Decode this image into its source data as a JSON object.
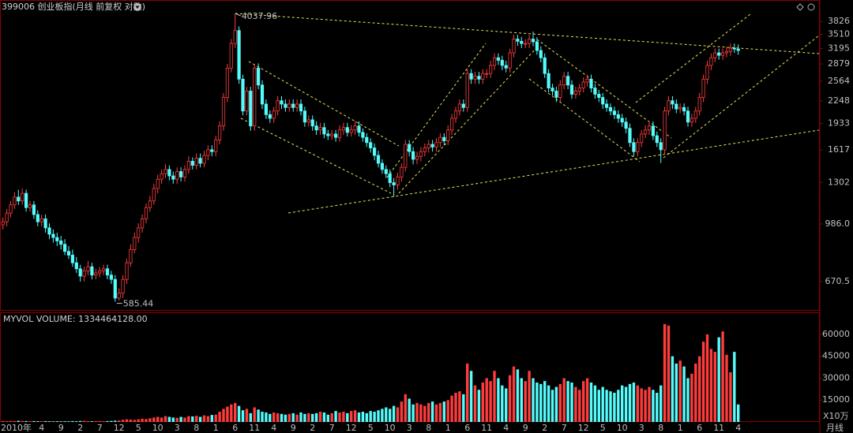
{
  "chart_data": {
    "type": "candlestick",
    "title": "399006 创业板指(月线 前复权 对数)",
    "categories": [
      "2010年",
      null,
      null,
      null,
      null,
      null,
      null,
      null,
      null,
      null,
      "4",
      null,
      null,
      null,
      null,
      "9",
      null,
      null,
      null,
      null,
      "2",
      null,
      null,
      null,
      null,
      "7",
      null,
      null,
      null,
      null,
      "12",
      null,
      null,
      null,
      null,
      "5",
      null,
      null,
      null,
      null,
      "10",
      null,
      null,
      null,
      null,
      "3",
      null,
      null,
      null,
      null,
      "8",
      null,
      null,
      null,
      null,
      "1",
      null,
      null,
      null,
      null,
      "6",
      null,
      null,
      null,
      null,
      "11",
      null,
      null,
      null,
      null,
      "4",
      null,
      null,
      null,
      null,
      "9",
      null,
      null,
      null,
      null,
      "2",
      null,
      null,
      null,
      null,
      "7",
      null,
      null,
      null,
      null,
      "12",
      null,
      null,
      null,
      null,
      "5",
      null,
      null,
      null,
      null,
      "10",
      null,
      null,
      null,
      null,
      "3",
      null,
      null,
      null,
      null,
      "8",
      null,
      null,
      null,
      null,
      "1",
      null,
      null,
      null,
      null,
      "6",
      null,
      null,
      null,
      null,
      "11",
      null,
      null,
      null,
      null,
      "4",
      null,
      null,
      null,
      null,
      "9",
      null,
      null,
      null,
      null,
      "2",
      null,
      null,
      null,
      null,
      "7",
      null,
      null,
      null,
      null,
      "12",
      null,
      null,
      null,
      null,
      "5",
      null,
      null,
      null,
      null,
      "10",
      null,
      null,
      null,
      null,
      "3",
      null,
      null,
      null,
      null,
      "8",
      null,
      null,
      null,
      null,
      "1",
      null,
      null,
      null,
      null,
      "6",
      null,
      null,
      null,
      null,
      "11",
      null,
      null,
      null,
      null,
      "4"
    ],
    "open": [
      980,
      1000,
      1060,
      1120,
      1180,
      1150,
      1210,
      1100,
      1120,
      1050,
      1000,
      1020,
      960,
      920,
      900,
      880,
      860,
      820,
      800,
      760,
      730,
      695,
      720,
      740,
      700,
      710,
      720,
      730,
      700,
      680,
      600,
      620,
      680,
      760,
      830,
      900,
      960,
      1020,
      1100,
      1150,
      1250,
      1330,
      1380,
      1420,
      1360,
      1330,
      1400,
      1350,
      1420,
      1500,
      1460,
      1530,
      1480,
      1560,
      1620,
      1600,
      1730,
      1900,
      2300,
      2800,
      3300,
      3600,
      2600,
      2100,
      2400,
      1900,
      2800,
      2500,
      2200,
      2050,
      2000,
      2100,
      2250,
      2200,
      2150,
      2200,
      2150,
      2200,
      2100,
      1950,
      1980,
      1900,
      1850,
      1880,
      1800,
      1780,
      1800,
      1760,
      1850,
      1880,
      1820,
      1850,
      1900,
      1820,
      1760,
      1700,
      1640,
      1560,
      1480,
      1420,
      1380,
      1300,
      1280,
      1350,
      1440,
      1680,
      1600,
      1520,
      1550,
      1600,
      1640,
      1680,
      1650,
      1700,
      1760,
      1720,
      1850,
      2000,
      2100,
      2200,
      2150,
      2700,
      2600,
      2650,
      2600,
      2700,
      2700,
      2850,
      3000,
      2950,
      2850,
      2800,
      3100,
      3400,
      3350,
      3300,
      3300,
      3400,
      3340,
      3150,
      3000,
      2700,
      2450,
      2400,
      2300,
      2500,
      2650,
      2500,
      2350,
      2400,
      2450,
      2550,
      2600,
      2450,
      2350,
      2300,
      2200,
      2150,
      2100,
      2050,
      2000,
      1950,
      1870,
      1700,
      1600,
      1700,
      1800,
      1850,
      1900,
      1780,
      1700,
      1620,
      2100,
      2250,
      2200,
      2130,
      2150,
      2100,
      1950,
      2000,
      2100,
      2300,
      2600,
      2850,
      3000,
      3100,
      3050,
      3100,
      3130,
      3200,
      3180
    ],
    "high": [
      1030,
      1090,
      1150,
      1220,
      1240,
      1250,
      1240,
      1150,
      1150,
      1080,
      1050,
      1050,
      990,
      950,
      930,
      910,
      890,
      850,
      830,
      790,
      750,
      740,
      770,
      760,
      730,
      740,
      750,
      750,
      720,
      700,
      640,
      700,
      780,
      860,
      930,
      990,
      1050,
      1130,
      1190,
      1290,
      1370,
      1420,
      1470,
      1460,
      1400,
      1440,
      1440,
      1460,
      1550,
      1540,
      1580,
      1580,
      1610,
      1670,
      1670,
      1780,
      1960,
      2370,
      2880,
      3400,
      4037.96,
      3700,
      2680,
      2470,
      2470,
      2880,
      2890,
      2580,
      2270,
      2110,
      2160,
      2320,
      2320,
      2270,
      2270,
      2270,
      2270,
      2270,
      2160,
      2040,
      2040,
      1960,
      1940,
      1940,
      1850,
      1850,
      1850,
      1910,
      1940,
      1940,
      1910,
      1960,
      1960,
      1870,
      1810,
      1750,
      1690,
      1610,
      1520,
      1460,
      1420,
      1340,
      1390,
      1480,
      1730,
      1730,
      1650,
      1600,
      1650,
      1690,
      1730,
      1730,
      1750,
      1810,
      1810,
      1910,
      2060,
      2160,
      2270,
      2270,
      2780,
      2780,
      2730,
      2730,
      2780,
      2780,
      2940,
      3090,
      3090,
      3040,
      2940,
      3190,
      3500,
      3500,
      3450,
      3400,
      3500,
      3576,
      3440,
      3240,
      3090,
      2780,
      2520,
      2470,
      2580,
      2730,
      2730,
      2580,
      2470,
      2520,
      2630,
      2680,
      2680,
      2520,
      2420,
      2370,
      2270,
      2210,
      2160,
      2110,
      2060,
      2010,
      1930,
      1750,
      1750,
      1850,
      1910,
      1960,
      1960,
      1830,
      1750,
      2160,
      2320,
      2320,
      2270,
      2210,
      2210,
      2160,
      2060,
      2160,
      2370,
      2680,
      2940,
      3090,
      3190,
      3190,
      3190,
      3220,
      3300,
      3300,
      3280
    ],
    "low": [
      950,
      970,
      1030,
      1090,
      1120,
      1120,
      1070,
      1070,
      1020,
      970,
      970,
      930,
      890,
      870,
      850,
      830,
      800,
      780,
      740,
      710,
      670,
      670,
      700,
      680,
      680,
      690,
      700,
      680,
      660,
      585.44,
      590,
      600,
      660,
      740,
      810,
      870,
      930,
      990,
      1070,
      1120,
      1210,
      1290,
      1340,
      1320,
      1290,
      1290,
      1310,
      1310,
      1380,
      1420,
      1420,
      1440,
      1440,
      1510,
      1550,
      1550,
      1680,
      1840,
      2230,
      2720,
      3200,
      2520,
      2040,
      2040,
      1840,
      1840,
      2430,
      2130,
      1990,
      1940,
      1940,
      2040,
      2130,
      2090,
      2090,
      2090,
      2090,
      2040,
      1890,
      1890,
      1840,
      1790,
      1790,
      1750,
      1730,
      1730,
      1710,
      1710,
      1790,
      1770,
      1770,
      1790,
      1770,
      1710,
      1650,
      1590,
      1510,
      1440,
      1380,
      1340,
      1260,
      1184,
      1240,
      1310,
      1400,
      1550,
      1470,
      1470,
      1500,
      1550,
      1590,
      1600,
      1600,
      1650,
      1670,
      1670,
      1790,
      1940,
      2040,
      2090,
      2090,
      2520,
      2520,
      2520,
      2520,
      2620,
      2620,
      2760,
      2860,
      2760,
      2720,
      2720,
      3010,
      3250,
      3200,
      3200,
      3200,
      3240,
      3060,
      2910,
      2620,
      2380,
      2330,
      2230,
      2230,
      2430,
      2430,
      2280,
      2280,
      2330,
      2380,
      2470,
      2380,
      2280,
      2230,
      2130,
      2090,
      2040,
      1990,
      1940,
      1890,
      1810,
      1650,
      1550,
      1550,
      1650,
      1750,
      1790,
      1730,
      1650,
      1482,
      1570,
      2040,
      2130,
      2070,
      2070,
      2040,
      1890,
      1890,
      1940,
      2040,
      2230,
      2520,
      2760,
      2910,
      2960,
      2960,
      3010,
      3040,
      3100,
      3060
    ],
    "close": [
      1000,
      1060,
      1120,
      1180,
      1150,
      1210,
      1100,
      1120,
      1050,
      1000,
      1020,
      960,
      920,
      900,
      880,
      860,
      820,
      800,
      760,
      730,
      695,
      720,
      740,
      700,
      710,
      720,
      730,
      700,
      680,
      600,
      620,
      680,
      760,
      830,
      900,
      960,
      1020,
      1100,
      1150,
      1250,
      1330,
      1380,
      1420,
      1360,
      1330,
      1400,
      1350,
      1420,
      1500,
      1460,
      1530,
      1480,
      1560,
      1620,
      1600,
      1730,
      1900,
      2300,
      2800,
      3300,
      3600,
      2600,
      2100,
      2400,
      1900,
      2800,
      2500,
      2200,
      2050,
      2000,
      2100,
      2250,
      2200,
      2150,
      2200,
      2150,
      2200,
      2100,
      1950,
      1980,
      1900,
      1850,
      1880,
      1800,
      1780,
      1800,
      1760,
      1850,
      1880,
      1820,
      1850,
      1900,
      1820,
      1760,
      1700,
      1640,
      1560,
      1480,
      1420,
      1380,
      1300,
      1280,
      1350,
      1440,
      1680,
      1600,
      1520,
      1550,
      1600,
      1640,
      1680,
      1650,
      1700,
      1760,
      1720,
      1850,
      2000,
      2100,
      2200,
      2150,
      2700,
      2600,
      2650,
      2600,
      2700,
      2700,
      2850,
      3000,
      2950,
      2850,
      2800,
      3100,
      3400,
      3350,
      3300,
      3300,
      3400,
      3340,
      3150,
      3000,
      2700,
      2450,
      2400,
      2300,
      2500,
      2650,
      2500,
      2350,
      2400,
      2450,
      2550,
      2600,
      2450,
      2350,
      2300,
      2200,
      2150,
      2100,
      2050,
      2000,
      1950,
      1870,
      1700,
      1600,
      1700,
      1800,
      1850,
      1900,
      1780,
      1700,
      1620,
      2100,
      2250,
      2200,
      2130,
      2150,
      2100,
      1950,
      2000,
      2100,
      2300,
      2600,
      2850,
      3000,
      3100,
      3050,
      3100,
      3130,
      3200,
      3180,
      3150
    ],
    "up_color": "#ff3c3c",
    "down_color": "#54fcfc",
    "log_scale": true,
    "ylim": [
      557,
      4190
    ],
    "yticks": [
      670.5,
      {
        "value": 986,
        "label": "986.0"
      },
      1302,
      1617,
      1933,
      2248,
      2564,
      2879,
      3195,
      3510,
      3826
    ],
    "volume": {
      "title": "MYVOL VOLUME: 1334464128.00",
      "unit": "X10万",
      "values": [
        600,
        500,
        700,
        600,
        800,
        700,
        600,
        500,
        600,
        500,
        500,
        600,
        500,
        400,
        500,
        400,
        500,
        400,
        600,
        500,
        700,
        800,
        600,
        500,
        500,
        600,
        500,
        600,
        700,
        900,
        1000,
        1500,
        1800,
        1600,
        1400,
        1800,
        2200,
        2000,
        2500,
        3000,
        3500,
        3000,
        4000,
        3500,
        3000,
        2800,
        3500,
        3000,
        4000,
        3800,
        4200,
        3500,
        4500,
        4000,
        4800,
        5000,
        7000,
        9000,
        10500,
        12000,
        13000,
        11000,
        8000,
        9000,
        6000,
        10000,
        8500,
        7000,
        6500,
        5500,
        6500,
        6000,
        5500,
        5000,
        5500,
        6000,
        5000,
        6500,
        5500,
        6000,
        5500,
        6000,
        7000,
        6500,
        5000,
        6000,
        7500,
        6500,
        7000,
        6000,
        7500,
        8000,
        6500,
        7000,
        6000,
        7500,
        7000,
        8000,
        9000,
        10000,
        9000,
        11000,
        10000,
        14000,
        19000,
        16000,
        12000,
        13000,
        12000,
        11000,
        13000,
        14000,
        12000,
        13000,
        14000,
        15000,
        18000,
        20000,
        21000,
        19000,
        40000,
        35000,
        25000,
        22000,
        27000,
        30000,
        28000,
        35000,
        30000,
        25000,
        23000,
        32000,
        38000,
        36000,
        30000,
        28000,
        35000,
        30000,
        27000,
        26000,
        28000,
        25000,
        22000,
        24000,
        26000,
        30000,
        28000,
        27000,
        24000,
        22000,
        28000,
        30000,
        27000,
        25000,
        22000,
        24000,
        22000,
        21000,
        20000,
        22000,
        25000,
        24000,
        26000,
        27000,
        25000,
        23000,
        22000,
        24000,
        22000,
        20000,
        25000,
        67000,
        66000,
        45000,
        40000,
        42000,
        38000,
        30000,
        33000,
        40000,
        45000,
        55000,
        60000,
        50000,
        48000,
        58000,
        62000,
        46000,
        34000,
        48000,
        12000
      ],
      "ylim": [
        0,
        74000
      ],
      "yticks": [
        15000,
        30000,
        45000,
        60000
      ]
    },
    "period_label": "月线"
  }
}
